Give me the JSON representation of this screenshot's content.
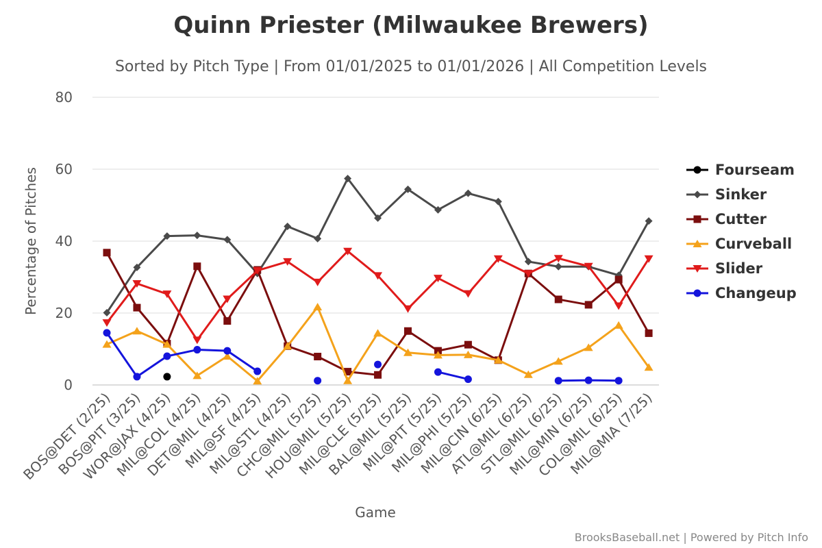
{
  "chart_data": {
    "type": "line",
    "title": "Quinn Priester (Milwaukee Brewers)",
    "subtitle": "Sorted by Pitch Type | From 01/01/2025 to 01/01/2026 | All Competition Levels",
    "xlabel": "Game",
    "ylabel": "Percentage of Pitches",
    "ylim": [
      0,
      80
    ],
    "yticks": [
      0,
      20,
      40,
      60,
      80
    ],
    "grid": true,
    "legend_position": "right",
    "credit": "BrooksBaseball.net | Powered by Pitch Info",
    "categories": [
      "BOS@DET (2/25)",
      "BOS@PIT (3/25)",
      "WOR@JAX (4/25)",
      "MIL@COL (4/25)",
      "DET@MIL (4/25)",
      "MIL@SF (4/25)",
      "MIL@STL (4/25)",
      "CHC@MIL (5/25)",
      "HOU@MIL (5/25)",
      "MIL@CLE (5/25)",
      "BAL@MIL (5/25)",
      "MIL@PIT (5/25)",
      "MIL@PHI (5/25)",
      "MIL@CIN (6/25)",
      "ATL@MIL (6/25)",
      "STL@MIL (6/25)",
      "MIL@MIN (6/25)",
      "COL@MIL (6/25)",
      "MIL@MIA (7/25)"
    ],
    "series": [
      {
        "name": "Fourseam",
        "color": "#000000",
        "marker": "circle",
        "values": [
          null,
          null,
          2.3,
          null,
          null,
          null,
          null,
          null,
          null,
          null,
          null,
          null,
          null,
          null,
          null,
          null,
          null,
          null,
          null
        ]
      },
      {
        "name": "Sinker",
        "color": "#4a4a4a",
        "marker": "diamond",
        "values": [
          20.1,
          32.7,
          41.4,
          41.6,
          40.4,
          31.0,
          44.1,
          40.7,
          57.4,
          46.4,
          54.4,
          48.7,
          53.3,
          51.0,
          34.3,
          32.9,
          32.9,
          30.5,
          45.6
        ]
      },
      {
        "name": "Cutter",
        "color": "#7b0e0e",
        "marker": "square",
        "values": [
          36.8,
          21.5,
          11.5,
          33.0,
          17.8,
          32.0,
          10.8,
          7.9,
          3.7,
          2.8,
          15.0,
          9.5,
          11.2,
          6.9,
          31.0,
          23.8,
          22.3,
          29.3,
          14.4
        ]
      },
      {
        "name": "Curveball",
        "color": "#f4a21b",
        "marker": "triangle-up",
        "values": [
          11.3,
          15.0,
          11.3,
          2.6,
          8.0,
          1.1,
          10.8,
          21.7,
          1.2,
          14.4,
          9.0,
          8.3,
          8.4,
          6.9,
          2.9,
          6.6,
          10.4,
          16.6,
          4.9
        ]
      },
      {
        "name": "Slider",
        "color": "#e01b1b",
        "marker": "triangle-down",
        "values": [
          17.3,
          28.2,
          25.3,
          12.5,
          23.9,
          31.8,
          34.3,
          28.6,
          37.2,
          30.4,
          21.2,
          29.7,
          25.4,
          35.1,
          31.0,
          35.2,
          33.0,
          22.0,
          35.1
        ]
      },
      {
        "name": "Changeup",
        "color": "#1414dc",
        "marker": "circle",
        "values": [
          14.5,
          2.3,
          8.0,
          9.8,
          9.5,
          3.8,
          null,
          1.2,
          null,
          5.7,
          null,
          3.6,
          1.6,
          null,
          null,
          1.2,
          1.3,
          1.2,
          null
        ]
      }
    ]
  }
}
